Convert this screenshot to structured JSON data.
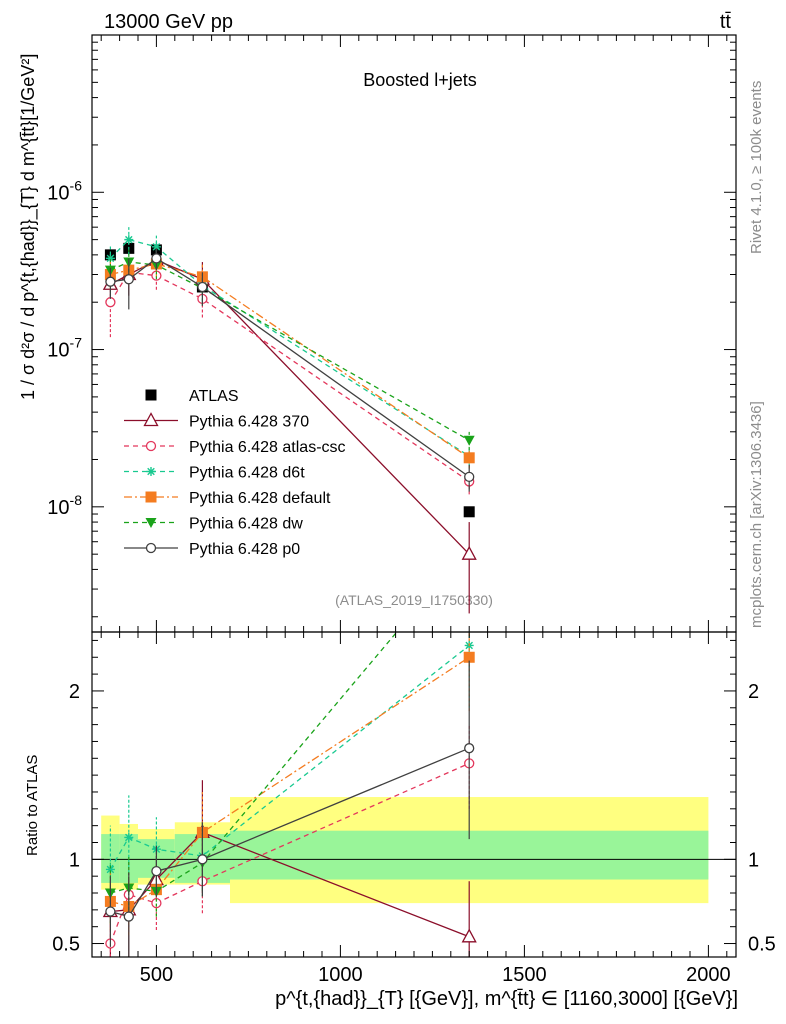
{
  "header": {
    "left_label": "13000 GeV pp",
    "right_label": "tt̄"
  },
  "side_labels": {
    "rivet": "Rivet 4.1.0, ≥ 100k events",
    "mcplots": "mcplots.cern.ch [arXiv:1306.3436]"
  },
  "chart_data": [
    {
      "type": "line",
      "panel": "main",
      "title": "Boosted l+jets",
      "watermark": "(ATLAS_2019_I1750330)",
      "ylabel": "1 / σ d²σ / d p^{t,{had}}_{T} d m^{t̄t}[1/GeV²]",
      "yscale": "log",
      "ylim": [
        1.6e-09,
        1e-05
      ],
      "xlim": [
        325,
        2075
      ],
      "y_tick_labels": [
        "10^{-8}",
        "10^{-7}",
        "10^{-6}"
      ],
      "legend_position": "center-left",
      "x": [
        375,
        425,
        500,
        625,
        1350
      ],
      "series": [
        {
          "name": "ATLAS",
          "color": "#000000",
          "marker": "square",
          "line": "none",
          "values": [
            4e-07,
            4.4e-07,
            4.3e-07,
            2.5e-07,
            9.3e-09
          ]
        },
        {
          "name": "Pythia 6.428 370",
          "color": "#8b0e2a",
          "marker": "triangle-open",
          "line": "solid",
          "values": [
            2.6e-07,
            3e-07,
            3.7e-07,
            2.8e-07,
            5e-09
          ],
          "err_low": [
            2e-07,
            2.2e-07,
            3.1e-07,
            2e-07,
            2.1e-09
          ],
          "err_high": [
            3.3e-07,
            3.8e-07,
            4.3e-07,
            3.6e-07,
            8e-09
          ]
        },
        {
          "name": "Pythia 6.428 atlas-csc",
          "color": "#e3375c",
          "marker": "circle-open",
          "line": "dashed",
          "values": [
            2e-07,
            3.1e-07,
            2.95e-07,
            2.1e-07,
            1.45e-08
          ],
          "err_low": [
            1.2e-07,
            2.4e-07,
            2.4e-07,
            1.6e-07,
            1.2e-08
          ],
          "err_high": [
            2.8e-07,
            3.8e-07,
            3.5e-07,
            2.6e-07,
            1.7e-08
          ]
        },
        {
          "name": "Pythia 6.428 d6t",
          "color": "#19c990",
          "marker": "star",
          "line": "dashed",
          "values": [
            3.8e-07,
            5e-07,
            4.5e-07,
            2.55e-07,
            2.1e-08
          ],
          "err_low": [
            3e-07,
            4e-07,
            3.8e-07,
            2e-07,
            1.8e-08
          ],
          "err_high": [
            4.6e-07,
            6e-07,
            5.3e-07,
            3.1e-07,
            2.4e-08
          ]
        },
        {
          "name": "Pythia 6.428 default",
          "color": "#f47c20",
          "marker": "square",
          "line": "dashdot",
          "values": [
            3e-07,
            3.2e-07,
            3.5e-07,
            2.9e-07,
            2.05e-08
          ],
          "err_low": [
            2.4e-07,
            2.6e-07,
            2.9e-07,
            2.3e-07,
            1.75e-08
          ],
          "err_high": [
            3.6e-07,
            3.8e-07,
            4.1e-07,
            3.5e-07,
            2.35e-08
          ]
        },
        {
          "name": "Pythia 6.428 dw",
          "color": "#1aa31a",
          "marker": "triangle-down",
          "line": "dashed",
          "values": [
            3.2e-07,
            3.6e-07,
            3.45e-07,
            2.45e-07,
            2.65e-08
          ],
          "err_low": [
            2.5e-07,
            2.9e-07,
            2.8e-07,
            1.9e-07,
            2.3e-08
          ],
          "err_high": [
            3.9e-07,
            4.3e-07,
            4.1e-07,
            3e-07,
            3e-08
          ]
        },
        {
          "name": "Pythia 6.428 p0",
          "color": "#404040",
          "marker": "circle-open",
          "line": "solid",
          "values": [
            2.7e-07,
            2.8e-07,
            3.8e-07,
            2.5e-07,
            1.55e-08
          ],
          "err_low": [
            2.1e-07,
            1.8e-07,
            3.2e-07,
            1.9e-07,
            1.25e-08
          ],
          "err_high": [
            3.3e-07,
            3.8e-07,
            4.4e-07,
            3.1e-07,
            1.85e-08
          ]
        }
      ]
    },
    {
      "type": "line",
      "panel": "ratio",
      "ylabel": "Ratio to ATLAS",
      "xlabel": "p^{t,{had}}_{T} [{GeV}], m^{t̄t} ∈ [1160,3000] [{GeV}]",
      "ylim": [
        0.42,
        2.35
      ],
      "xlim": [
        325,
        2075
      ],
      "y_ticks": [
        0.5,
        1,
        2
      ],
      "y_tick_labels": [
        "0.5",
        "1",
        "2"
      ],
      "x_ticks": [
        500,
        1000,
        1500,
        2000
      ],
      "x_tick_labels": [
        "500",
        "1000",
        "1500",
        "2000"
      ],
      "bins": [
        [
          350,
          400
        ],
        [
          400,
          450
        ],
        [
          450,
          550
        ],
        [
          550,
          700
        ],
        [
          700,
          2000
        ]
      ],
      "band_inner": [
        [
          0.86,
          1.15
        ],
        [
          0.86,
          1.15
        ],
        [
          0.89,
          1.12
        ],
        [
          0.86,
          1.15
        ],
        [
          0.88,
          1.17
        ]
      ],
      "band_outer": [
        [
          0.82,
          1.26
        ],
        [
          0.82,
          1.21
        ],
        [
          0.85,
          1.18
        ],
        [
          0.85,
          1.22
        ],
        [
          0.74,
          1.37
        ]
      ],
      "x": [
        375,
        425,
        500,
        625,
        1350
      ],
      "series": [
        {
          "name": "Pythia 6.428 370",
          "color": "#8b0e2a",
          "values": [
            0.69,
            0.7,
            0.88,
            1.16,
            0.54
          ],
          "err_low": [
            0.38,
            0.4,
            0.72,
            0.8,
            0.22
          ],
          "err_high": [
            0.82,
            0.88,
            1.02,
            1.47,
            0.87
          ]
        },
        {
          "name": "Pythia 6.428 atlas-csc",
          "color": "#e3375c",
          "values": [
            0.5,
            0.79,
            0.74,
            0.87,
            1.57
          ],
          "err_low": [
            0.3,
            0.55,
            0.58,
            0.68,
            1.3
          ],
          "err_high": [
            0.7,
            0.98,
            0.9,
            1.05,
            1.8
          ]
        },
        {
          "name": "Pythia 6.428 d6t",
          "color": "#19c990",
          "values": [
            0.94,
            1.13,
            1.06,
            1.02,
            2.27
          ],
          "err_low": [
            0.72,
            0.92,
            0.88,
            0.82,
            1.9
          ],
          "err_high": [
            1.2,
            1.38,
            1.25,
            1.25,
            2.6
          ]
        },
        {
          "name": "Pythia 6.428 default",
          "color": "#f47c20",
          "values": [
            0.75,
            0.72,
            0.82,
            1.16,
            2.2
          ],
          "err_low": [
            0.58,
            0.55,
            0.66,
            0.94,
            1.88
          ],
          "err_high": [
            0.92,
            0.9,
            0.98,
            1.4,
            2.52
          ]
        },
        {
          "name": "Pythia 6.428 dw",
          "color": "#1aa31a",
          "values": [
            0.8,
            0.83,
            0.81,
            0.98,
            2.86
          ],
          "err_low": [
            0.62,
            0.64,
            0.66,
            0.78,
            2.4
          ],
          "err_high": [
            0.98,
            1.02,
            0.97,
            1.18,
            3.3
          ]
        },
        {
          "name": "Pythia 6.428 p0",
          "color": "#404040",
          "values": [
            0.69,
            0.66,
            0.93,
            1.0,
            1.66
          ],
          "err_low": [
            0.48,
            0.4,
            0.78,
            0.78,
            1.12
          ],
          "err_high": [
            0.9,
            0.92,
            1.08,
            1.22,
            2.18
          ]
        }
      ]
    }
  ]
}
